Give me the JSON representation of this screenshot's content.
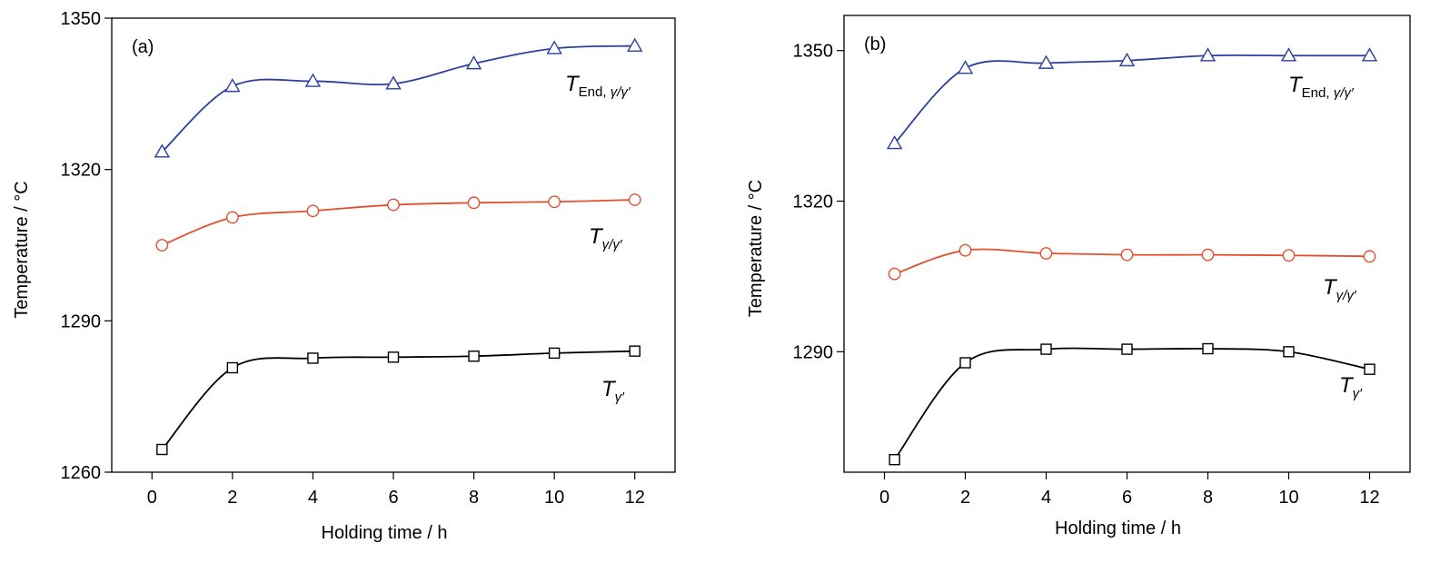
{
  "chart_data": [
    {
      "type": "line",
      "panel_label": "(a)",
      "xlabel": "Holding time / h",
      "ylabel": "Temperature / °C",
      "xlim": [
        -1,
        13
      ],
      "ylim": [
        1260,
        1350
      ],
      "xticks": [
        "0",
        "2",
        "4",
        "6",
        "8",
        "10",
        "12"
      ],
      "yticks": [
        "1260",
        "1290",
        "1320",
        "1350"
      ],
      "series": [
        {
          "label": {
            "main": "T",
            "sub": "End, ",
            "sub_italic": "γ/γ′"
          },
          "marker": "triangle",
          "color": "#2b3f9e",
          "x": [
            0.25,
            2,
            4,
            6,
            8,
            10,
            12
          ],
          "y": [
            1323.5,
            1336.5,
            1337.5,
            1337,
            1341,
            1344,
            1344.5
          ]
        },
        {
          "label": {
            "main": "T",
            "sub": "",
            "sub_italic": "γ/γ′"
          },
          "marker": "circle",
          "color": "#e0502e",
          "x": [
            0.25,
            2,
            4,
            6,
            8,
            10,
            12
          ],
          "y": [
            1305,
            1310.5,
            1311.8,
            1313,
            1313.4,
            1313.6,
            1314
          ]
        },
        {
          "label": {
            "main": "T",
            "sub": "",
            "sub_italic": "γ′"
          },
          "marker": "square",
          "color": "#000000",
          "x": [
            0.25,
            2,
            4,
            6,
            8,
            10,
            12
          ],
          "y": [
            1264.5,
            1280.7,
            1282.6,
            1282.8,
            1283,
            1283.6,
            1284
          ]
        }
      ]
    },
    {
      "type": "line",
      "panel_label": "(b)",
      "xlabel": "Holding time / h",
      "ylabel": "Temperature / °C",
      "xlim": [
        -1,
        13
      ],
      "ylim": [
        1266,
        1357
      ],
      "xticks": [
        "0",
        "2",
        "4",
        "6",
        "8",
        "10",
        "12"
      ],
      "yticks": [
        "1290",
        "1320",
        "1350"
      ],
      "series": [
        {
          "label": {
            "main": "T",
            "sub": "End, ",
            "sub_italic": "γ/γ′"
          },
          "marker": "triangle",
          "color": "#2b3f9e",
          "x": [
            0.25,
            2,
            4,
            6,
            8,
            10,
            12
          ],
          "y": [
            1331.5,
            1346.5,
            1347.5,
            1348,
            1349,
            1349,
            1349
          ]
        },
        {
          "label": {
            "main": "T",
            "sub": "",
            "sub_italic": "γ/γ′"
          },
          "marker": "circle",
          "color": "#e0502e",
          "x": [
            0.25,
            2,
            4,
            6,
            8,
            10,
            12
          ],
          "y": [
            1305.5,
            1310.2,
            1309.6,
            1309.3,
            1309.3,
            1309.2,
            1309
          ]
        },
        {
          "label": {
            "main": "T",
            "sub": "",
            "sub_italic": "γ′"
          },
          "marker": "square",
          "color": "#000000",
          "x": [
            0.25,
            2,
            4,
            6,
            8,
            10,
            12
          ],
          "y": [
            1268.5,
            1287.8,
            1290.5,
            1290.5,
            1290.6,
            1290,
            1286.5
          ]
        }
      ]
    }
  ]
}
